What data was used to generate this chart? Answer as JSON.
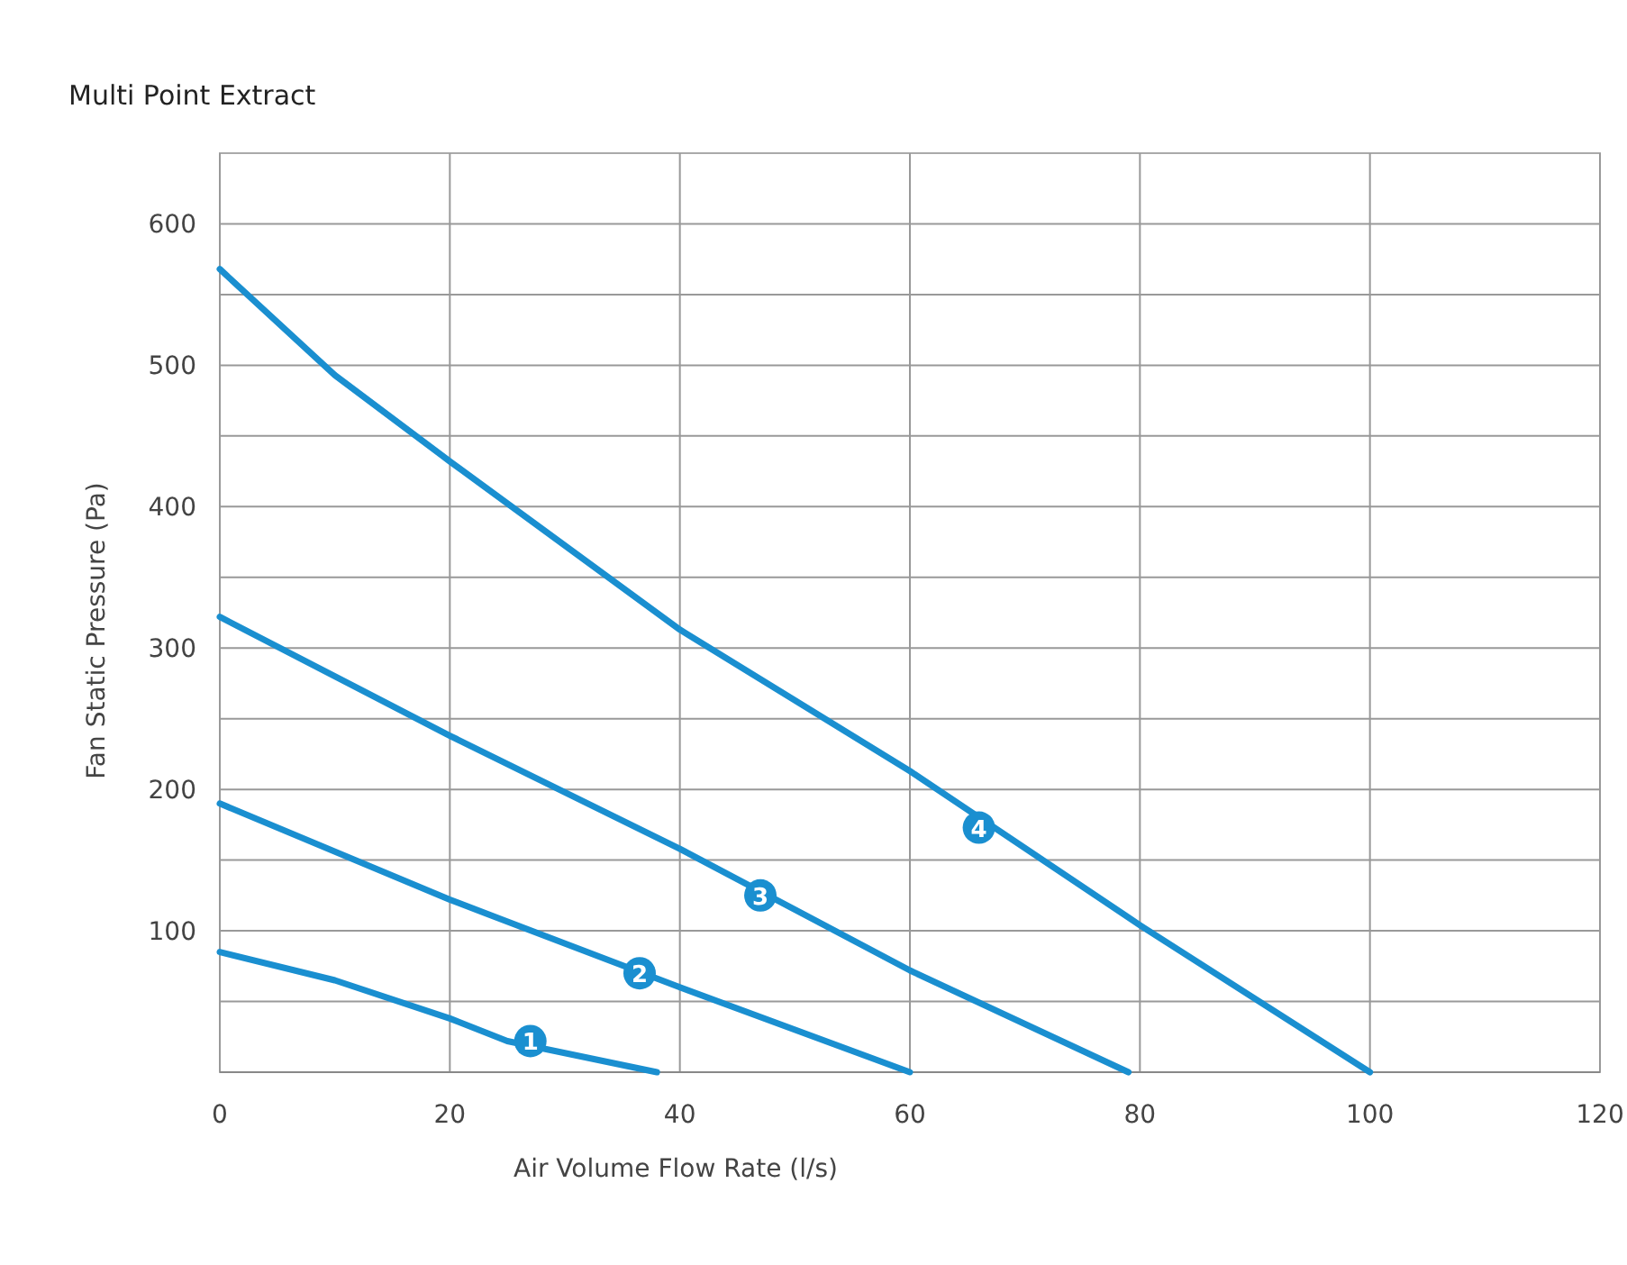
{
  "chart_data": {
    "type": "line",
    "title": "Multi Point Extract",
    "xlabel": "Air Volume Flow Rate (l/s)",
    "ylabel": "Fan Static Pressure (Pa)",
    "xlim": [
      0,
      120
    ],
    "xticks": [
      0,
      20,
      40,
      60,
      80,
      100,
      120
    ],
    "ylim": [
      0,
      650
    ],
    "yticks": [
      {
        "value": 0,
        "label": null
      },
      {
        "value": 50,
        "label": null
      },
      100,
      {
        "value": 150,
        "label": null
      },
      200,
      {
        "value": 250,
        "label": null
      },
      300,
      {
        "value": 350,
        "label": null
      },
      400,
      {
        "value": 450,
        "label": null
      },
      500,
      {
        "value": 550,
        "label": null
      },
      600
    ],
    "grid": true,
    "marker": "none",
    "line_style": "solid",
    "series": [
      {
        "color": "#1a8fd0",
        "x": [
          0,
          10,
          20,
          25,
          38
        ],
        "values": [
          85,
          65,
          38,
          22,
          0
        ]
      },
      {
        "color": "#1a8fd0",
        "x": [
          0,
          20,
          40,
          60
        ],
        "values": [
          190,
          122,
          60,
          0
        ]
      },
      {
        "color": "#1a8fd0",
        "x": [
          0,
          20,
          40,
          60,
          79
        ],
        "values": [
          322,
          238,
          158,
          72,
          0
        ]
      },
      {
        "color": "#1a8fd0",
        "x": [
          0,
          10,
          20,
          40,
          60,
          80,
          100
        ],
        "values": [
          568,
          493,
          432,
          313,
          213,
          104,
          0
        ]
      }
    ],
    "annotations": [
      {
        "text": "1",
        "x": 27,
        "y": 22
      },
      {
        "text": "2",
        "x": 36.5,
        "y": 70
      },
      {
        "text": "3",
        "x": 47,
        "y": 125
      },
      {
        "text": "4",
        "x": 66,
        "y": 173
      }
    ]
  }
}
